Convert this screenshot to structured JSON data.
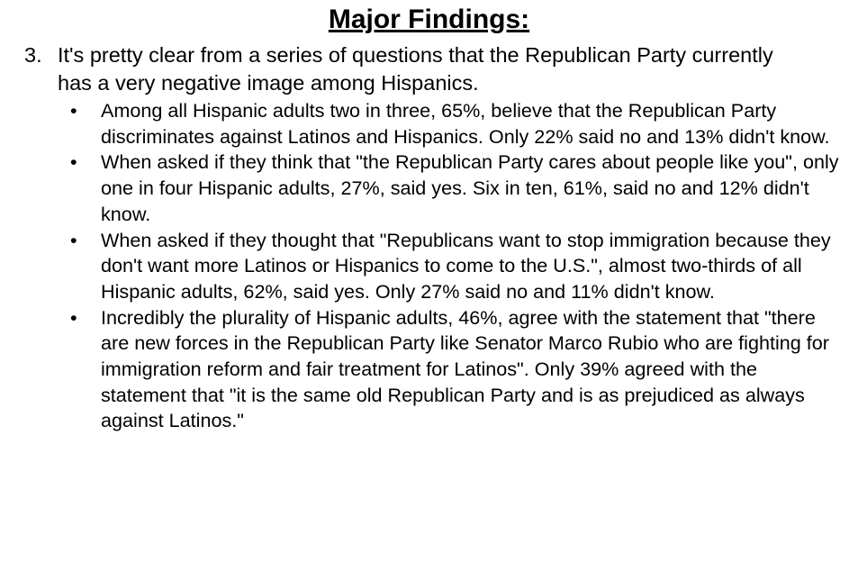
{
  "title": "Major Findings:",
  "item": {
    "number": "3.",
    "text": "It's pretty clear from a series of questions that the Republican Party currently has a very negative image among Hispanics.",
    "bullets": [
      "Among all Hispanic adults two in three, 65%, believe that the Republican Party discriminates against Latinos and Hispanics. Only 22% said no and 13% didn't know.",
      "When asked if they think that \"the Republican Party cares about people like you\", only one in four Hispanic adults, 27%, said yes. Six in ten, 61%, said no and 12% didn't know.",
      "When asked if they thought that \"Republicans want to stop immigration because they don't want more Latinos or Hispanics to come to the U.S.\", almost two-thirds of all Hispanic adults, 62%, said yes. Only 27% said no and 11% didn't know.",
      "Incredibly the plurality of Hispanic adults, 46%, agree with the statement that \"there are new forces in the Republican Party like Senator Marco Rubio who are fighting for immigration reform and fair treatment for Latinos\". Only 39% agreed with the statement that \"it is the same old Republican Party and is as prejudiced as always against Latinos.\""
    ]
  }
}
